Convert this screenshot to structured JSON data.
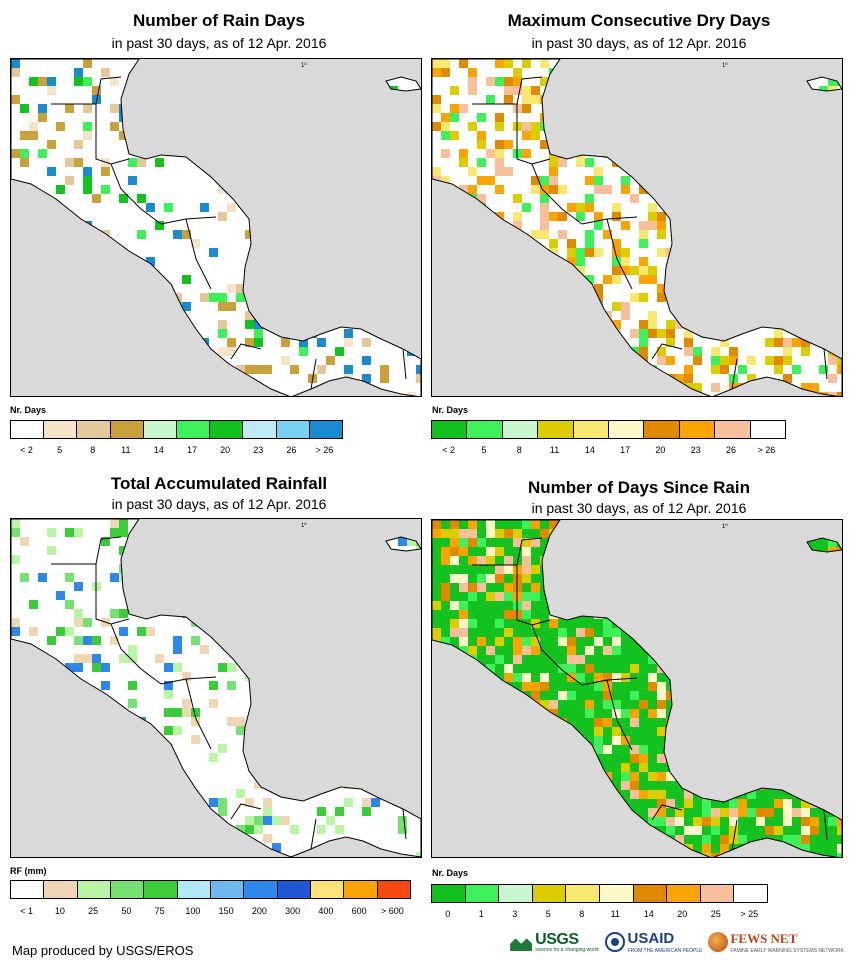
{
  "panels": [
    {
      "id": "rain_days",
      "title": "Number of Rain Days",
      "subtitle": "in past 30 days, as of 12 Apr. 2016",
      "legend_title": "Nr. Days",
      "legend_colors": [
        "#ffffff",
        "#f6e4c9",
        "#e3c89a",
        "#c9a13a",
        "#c9f6cf",
        "#3ef05a",
        "#13c21f",
        "#bfeaf6",
        "#7ad0f0",
        "#1a8bd1"
      ],
      "legend_labels": [
        "< 2",
        "5",
        "8",
        "11",
        "14",
        "17",
        "20",
        "23",
        "26",
        "> 26"
      ],
      "dominant": "#ffffff",
      "accents": [
        "#f6e4c9",
        "#e3c89a",
        "#3ef05a",
        "#13c21f",
        "#1a8bd1",
        "#c9a13a"
      ]
    },
    {
      "id": "max_dry_days",
      "title": "Maximum Consecutive Dry Days",
      "subtitle": "in past 30 days, as of 12 Apr. 2016",
      "legend_title": "Nr. Days",
      "legend_colors": [
        "#13c21f",
        "#3ef05a",
        "#c9f6cf",
        "#dccd00",
        "#f8e870",
        "#fdf9c8",
        "#e08a00",
        "#f9a400",
        "#f8c09a",
        "#ffffff"
      ],
      "legend_labels": [
        "< 2",
        "5",
        "8",
        "11",
        "14",
        "17",
        "20",
        "23",
        "26",
        "> 26"
      ],
      "dominant": "#ffffff",
      "accents": [
        "#f9a400",
        "#e08a00",
        "#f8e870",
        "#f8c09a",
        "#dccd00",
        "#3ef05a"
      ]
    },
    {
      "id": "total_rainfall",
      "title": "Total Accumulated Rainfall",
      "subtitle": "in past 30 days, as of 12 Apr. 2016",
      "legend_title": "RF (mm)",
      "legend_colors": [
        "#ffffff",
        "#efd7b5",
        "#b9f5a4",
        "#76e070",
        "#3ccc3a",
        "#b5e8f6",
        "#6fb9f3",
        "#2e87ea",
        "#1f57d4",
        "#fde27a",
        "#f9a400",
        "#f64a12"
      ],
      "legend_labels": [
        "< 1",
        "10",
        "25",
        "50",
        "75",
        "100",
        "150",
        "200",
        "300",
        "400",
        "600",
        "> 600"
      ],
      "dominant": "#ffffff",
      "accents": [
        "#efd7b5",
        "#b9f5a4",
        "#76e070",
        "#3ccc3a",
        "#2e87ea"
      ]
    },
    {
      "id": "days_since_rain",
      "title": "Number of Days Since Rain",
      "subtitle": "in past 30 days, as of 12 Apr. 2016",
      "legend_title": "Nr. Days",
      "legend_colors": [
        "#13c21f",
        "#3ef05a",
        "#c9f6cf",
        "#dccd00",
        "#f8e870",
        "#fdf9c8",
        "#e08a00",
        "#f9a400",
        "#f8c09a",
        "#ffffff"
      ],
      "legend_labels": [
        "0",
        "1",
        "3",
        "5",
        "8",
        "11",
        "14",
        "20",
        "25",
        "> 25"
      ],
      "dominant": "#13c21f",
      "accents": [
        "#3ef05a",
        "#f8c09a",
        "#f9a400",
        "#fdf9c8",
        "#dccd00",
        "#e08a00"
      ]
    }
  ],
  "tick_label": "1º",
  "credit": "Map produced by USGS/EROS",
  "logos": {
    "usgs": "USGS",
    "usgs_tag": "science for a changing world",
    "usaid": "USAID",
    "usaid_tag": "FROM THE AMERICAN PEOPLE",
    "fews": "FEWS NET",
    "fews_tag": "FAMINE EARLY WARNING SYSTEMS NETWORK"
  }
}
